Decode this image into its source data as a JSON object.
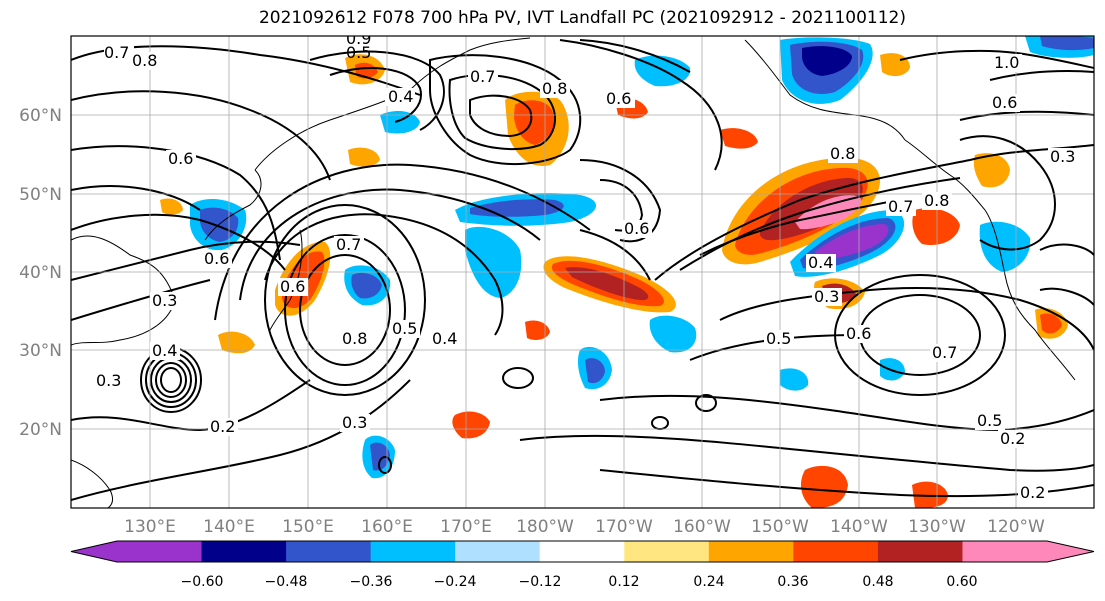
{
  "title": "2021092612 F078 700 hPa PV, IVT Landfall PC (2021092912 - 2021100112)",
  "lat_labels": [
    "60°N",
    "50°N",
    "40°N",
    "30°N",
    "20°N"
  ],
  "lon_labels": [
    "130°E",
    "140°E",
    "150°E",
    "160°E",
    "170°E",
    "180°W",
    "170°W",
    "160°W",
    "150°W",
    "140°W",
    "130°W",
    "120°W"
  ],
  "colorbar": {
    "ticks": [
      "−0.60",
      "−0.48",
      "−0.36",
      "−0.24",
      "−0.12",
      "0.12",
      "0.24",
      "0.36",
      "0.48",
      "0.60"
    ],
    "colors": [
      "#9933cc",
      "#00008b",
      "#3355cc",
      "#00bfff",
      "#b0e0ff",
      "#ffffff",
      "#ffe680",
      "#ffa500",
      "#ff4500",
      "#b22222",
      "#ff88bb"
    ]
  },
  "contour_labels": [
    "0.7",
    "0.8",
    "0.9",
    "0.5",
    "0.4",
    "0.7",
    "0.8",
    "0.6",
    "1.0",
    "0.6",
    "0.3",
    "0.6",
    "0.6",
    "0.8",
    "0.6",
    "0.7",
    "0.8",
    "0.4",
    "0.3",
    "0.5",
    "0.6",
    "0.7",
    "0.5",
    "0.2",
    "0.2",
    "0.3",
    "0.4",
    "0.5",
    "0.6",
    "0.7",
    "0.8",
    "0.3",
    "0.2",
    "0.3",
    "0.4"
  ]
}
